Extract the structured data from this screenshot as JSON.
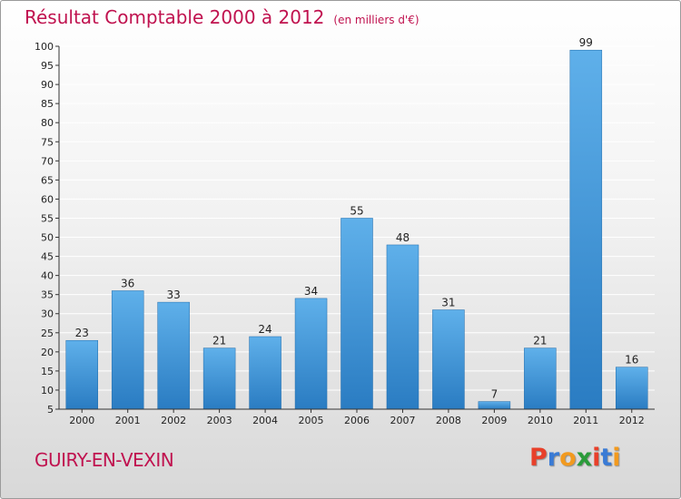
{
  "header": {
    "title": "Résultat Comptable 2000 à 2012",
    "unit": "(en milliers d'€)"
  },
  "footer": {
    "city": "GUIRY-EN-VEXIN",
    "brand_letters": [
      {
        "char": "P",
        "color": "#e8402a"
      },
      {
        "char": "r",
        "color": "#3a7bd5"
      },
      {
        "char": "o",
        "color": "#f29a1f"
      },
      {
        "char": "x",
        "color": "#2a9b3a"
      },
      {
        "char": "i",
        "color": "#e8402a"
      },
      {
        "char": "t",
        "color": "#3a7bd5"
      },
      {
        "char": "i",
        "color": "#f29a1f"
      }
    ]
  },
  "colors": {
    "title": "#c0124f",
    "bar_top": "#5fb0ea",
    "bar_bottom": "#2a7cc2",
    "grid": "#ffffff",
    "axis": "#333333"
  },
  "chart_data": {
    "type": "bar",
    "title": "Résultat Comptable 2000 à 2012",
    "xlabel": "",
    "ylabel": "",
    "categories": [
      "2000",
      "2001",
      "2002",
      "2003",
      "2004",
      "2005",
      "2006",
      "2007",
      "2008",
      "2009",
      "2010",
      "2011",
      "2012"
    ],
    "values": [
      23,
      36,
      33,
      21,
      24,
      34,
      55,
      48,
      31,
      7,
      21,
      99,
      16
    ],
    "data_labels": [
      "23",
      "36",
      "33",
      "21",
      "24",
      "34",
      "55",
      "48",
      "31",
      "7",
      "21",
      "99",
      "16"
    ],
    "ylim": [
      5,
      100
    ],
    "yticks": [
      "5",
      "10",
      "15",
      "20",
      "25",
      "30",
      "35",
      "40",
      "45",
      "50",
      "55",
      "60",
      "65",
      "70",
      "75",
      "80",
      "85",
      "90",
      "95",
      "100"
    ],
    "grid": true,
    "legend": "none"
  }
}
